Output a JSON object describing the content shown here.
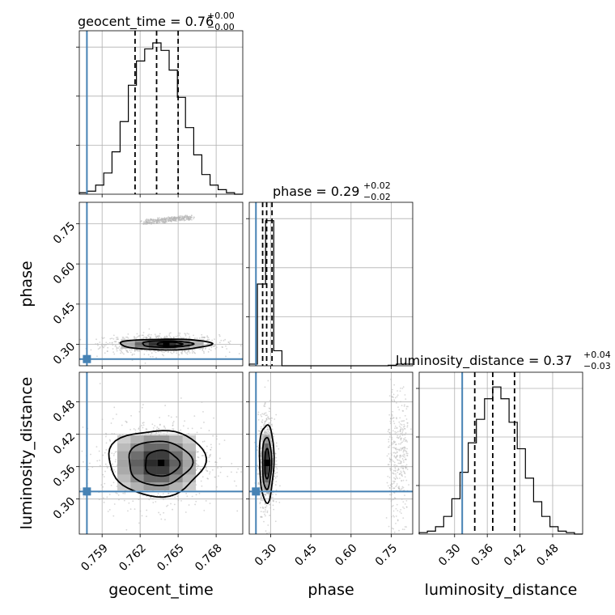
{
  "chart_data": {
    "type": "corner",
    "parameters": [
      "geocent_time",
      "phase",
      "luminosity_distance"
    ],
    "axis_labels": {
      "geocent_time": "geocent_time",
      "phase": "phase",
      "luminosity_distance": "luminosity_distance"
    },
    "titles": {
      "geocent_time": {
        "text": "geocent_time = 0.76",
        "upper": "+0.00",
        "lower": "−0.00"
      },
      "phase": {
        "text": "phase = 0.29",
        "upper": "+0.02",
        "lower": "−0.02"
      },
      "luminosity_distance": {
        "text": "luminosity_distance = 0.37",
        "upper": "+0.04",
        "lower": "−0.03"
      }
    },
    "ranges": {
      "geocent_time": [
        0.7572,
        0.7701
      ],
      "phase": [
        0.22,
        0.83
      ],
      "luminosity_distance": [
        0.235,
        0.535
      ]
    },
    "ticks": {
      "geocent_time": {
        "values": [
          0.759,
          0.762,
          0.765,
          0.768
        ],
        "labels": [
          "0.759",
          "0.762",
          "0.765",
          "0.768"
        ]
      },
      "phase": {
        "values": [
          0.3,
          0.45,
          0.6,
          0.75
        ],
        "labels": [
          "0.30",
          "0.45",
          "0.60",
          "0.75"
        ]
      },
      "luminosity_distance": {
        "values": [
          0.3,
          0.36,
          0.42,
          0.48
        ],
        "labels": [
          "0.30",
          "0.36",
          "0.42",
          "0.48"
        ]
      }
    },
    "truths": {
      "geocent_time": 0.7578,
      "phase": 0.245,
      "luminosity_distance": 0.314
    },
    "quantiles": {
      "geocent_time": [
        0.7616,
        0.7633,
        0.765
      ],
      "phase": [
        0.27,
        0.285,
        0.305
      ],
      "luminosity_distance": [
        0.337,
        0.37,
        0.41
      ]
    },
    "histograms": {
      "geocent_time": {
        "edges": [
          0.7572,
          0.75784,
          0.75849,
          0.75913,
          0.75978,
          0.76042,
          0.76107,
          0.76171,
          0.76236,
          0.763,
          0.76365,
          0.76429,
          0.76494,
          0.76558,
          0.76623,
          0.76687,
          0.76752,
          0.76816,
          0.76881,
          0.76945,
          0.7701
        ],
        "counts": [
          1,
          2,
          6,
          14,
          28,
          48,
          72,
          88,
          96,
          100,
          95,
          82,
          64,
          44,
          26,
          13,
          6,
          3,
          1,
          0
        ],
        "ymax": 108
      },
      "phase": {
        "edges": [
          0.22,
          0.2505,
          0.281,
          0.3115,
          0.342,
          0.3725,
          0.403,
          0.4335,
          0.464,
          0.4945,
          0.525,
          0.5555,
          0.586,
          0.6165,
          0.647,
          0.6775,
          0.708,
          0.7385,
          0.769,
          0.7995,
          0.83
        ],
        "counts": [
          1,
          49,
          87,
          9,
          0,
          0,
          0,
          0,
          0,
          0,
          0,
          0,
          0,
          0,
          0,
          0,
          0,
          0.3,
          1,
          1
        ],
        "ymax": 98
      },
      "luminosity_distance": {
        "edges": [
          0.235,
          0.25,
          0.265,
          0.28,
          0.295,
          0.31,
          0.325,
          0.34,
          0.355,
          0.37,
          0.385,
          0.4,
          0.415,
          0.43,
          0.445,
          0.46,
          0.475,
          0.49,
          0.505,
          0.52,
          0.535
        ],
        "counts": [
          1,
          2,
          5,
          12,
          24,
          42,
          62,
          78,
          92,
          100,
          92,
          76,
          58,
          38,
          22,
          12,
          5,
          2,
          1,
          0
        ],
        "ymax": 110
      }
    },
    "pairs": [
      {
        "x": "geocent_time",
        "y": "phase",
        "main_mode": {
          "mean": [
            0.7637,
            0.3
          ],
          "sd": [
            0.0018,
            0.014
          ]
        },
        "minor_mode": {
          "center": [
            0.7642,
            0.765
          ],
          "extent": [
            0.0035,
            0.035
          ],
          "tilt": 0.5
        },
        "density_box": {
          "x": [
            0.7605,
            0.767
          ],
          "y": [
            0.283,
            0.318
          ]
        },
        "contours": [
          {
            "cx": 0.764,
            "cy": 0.3,
            "rx": 0.0036,
            "ry": 0.02,
            "rot": 0.006
          },
          {
            "cx": 0.7641,
            "cy": 0.301,
            "rx": 0.002,
            "ry": 0.012,
            "rot": 0.004
          },
          {
            "cx": 0.7643,
            "cy": 0.301,
            "rx": 0.001,
            "ry": 0.007,
            "rot": 0.002
          }
        ]
      },
      {
        "x": "geocent_time",
        "y": "luminosity_distance",
        "main_mode": {
          "mean": [
            0.7633,
            0.367
          ],
          "sd": [
            0.0018,
            0.033
          ]
        },
        "density_box": {
          "x": [
            0.7602,
            0.7664
          ],
          "y": [
            0.316,
            0.418
          ]
        },
        "contours": [
          {
            "cx": 0.7633,
            "cy": 0.368,
            "rx": 0.0038,
            "ry": 0.061
          },
          {
            "cx": 0.7635,
            "cy": 0.367,
            "rx": 0.0025,
            "ry": 0.041
          },
          {
            "cx": 0.7637,
            "cy": 0.366,
            "rx": 0.00135,
            "ry": 0.024
          }
        ]
      },
      {
        "x": "phase",
        "y": "luminosity_distance",
        "main_mode": {
          "mean": [
            0.285,
            0.367
          ],
          "sd": [
            0.012,
            0.034
          ]
        },
        "minor_mode": {
          "center": [
            0.775,
            0.375
          ],
          "extent": [
            0.07,
            0.18
          ]
        },
        "density_box": {
          "x": [
            0.268,
            0.302
          ],
          "y": [
            0.316,
            0.418
          ]
        },
        "contours": [
          {
            "cx": 0.285,
            "cy": 0.368,
            "rx": 0.027,
            "ry": 0.072
          },
          {
            "cx": 0.286,
            "cy": 0.367,
            "rx": 0.017,
            "ry": 0.048
          },
          {
            "cx": 0.287,
            "cy": 0.365,
            "rx": 0.009,
            "ry": 0.028
          }
        ]
      }
    ],
    "colors": {
      "truth": "#4682b4",
      "line": "#000000",
      "grid": "#b0b0b0",
      "scatter": "#b4b4b4"
    }
  }
}
